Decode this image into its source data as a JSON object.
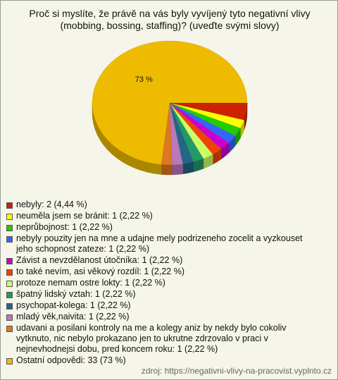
{
  "chart_data": {
    "type": "pie",
    "title": "Proč si myslíte, že právě na vás byly vyvíjený tyto negativní vlivy (mobbing, bossing, staffing)? (uveďte svými slovy)",
    "categories": [
      "nebyly: 2 (4,44 %)",
      "neuměla jsem se bránit: 1 (2,22 %)",
      "neprůbojnost: 1 (2,22 %)",
      "nebyly pouzity jen na mne a udajne mely podrizeneho zocelit a vyzkouset jeho schopnost zateze: 1 (2,22 %)",
      "Závist a nevzdělanost útočníka: 1 (2,22 %)",
      "to také nevím, asi věkový rozdíl: 1 (2,22 %)",
      "protoze nemam ostre lokty: 1 (2,22 %)",
      "špatný lidský vztah: 1 (2,22 %)",
      "psychopat-kolega: 1 (2,22 %)",
      "mladý věk,naivita: 1 (2,22 %)",
      "udavani a posilani kontroly na me a kolegy aniz by nekdy bylo cokoliv vytknuto, nic nebylo prokazano jen to ukrutne zdrzovalo v praci v nejnevhodnejsi dobu, pred koncem roku: 1 (2,22 %)",
      "Ostatní odpovědi: 33 (73 %)"
    ],
    "values": [
      4.44,
      2.22,
      2.22,
      2.22,
      2.22,
      2.22,
      2.22,
      2.22,
      2.22,
      2.22,
      2.22,
      73
    ],
    "value_labels": [
      null,
      null,
      null,
      null,
      null,
      null,
      null,
      null,
      null,
      null,
      null,
      "73 %"
    ],
    "colors": [
      "#cc2200",
      "#ffff00",
      "#22cc00",
      "#3366ff",
      "#cc00cc",
      "#ee4400",
      "#ccff66",
      "#229966",
      "#226688",
      "#bb77bb",
      "#dd7722",
      "#eebb00"
    ],
    "source": "zdroj: https://negativni-vlivy-na-pracovist.vyplnto.cz"
  }
}
